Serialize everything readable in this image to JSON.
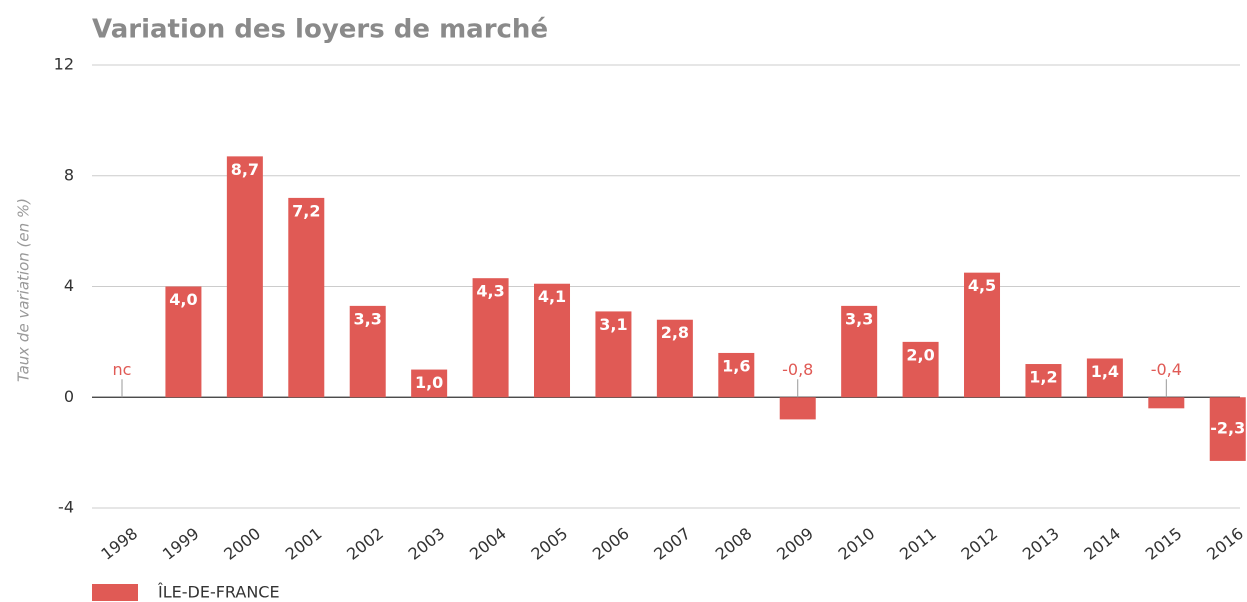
{
  "chart_data": {
    "type": "bar",
    "title": "Variation des loyers de marché",
    "y_label": "Taux de variation (en %)",
    "categories": [
      "1998",
      "1999",
      "2000",
      "2001",
      "2002",
      "2003",
      "2004",
      "2005",
      "2006",
      "2007",
      "2008",
      "2009",
      "2010",
      "2011",
      "2012",
      "2013",
      "2014",
      "2015",
      "2016"
    ],
    "series": [
      {
        "name": "ÎLE-DE-FRANCE",
        "color": "#e05a55",
        "values": [
          null,
          4.0,
          8.7,
          7.2,
          3.3,
          1.0,
          4.3,
          4.1,
          3.1,
          2.8,
          1.6,
          -0.8,
          3.3,
          2.0,
          4.5,
          1.2,
          1.4,
          -0.4,
          -2.3
        ],
        "value_labels": [
          "nc",
          "4,0",
          "8,7",
          "7,2",
          "3,3",
          "1,0",
          "4,3",
          "4,1",
          "3,1",
          "2,8",
          "1,6",
          "-0,8",
          "3,3",
          "2,0",
          "4,5",
          "1,2",
          "1,4",
          "-0,4",
          "-2,3"
        ]
      }
    ],
    "ylim": [
      -4,
      12
    ],
    "yticks": [
      -4,
      0,
      4,
      8,
      12
    ],
    "grid": true
  }
}
